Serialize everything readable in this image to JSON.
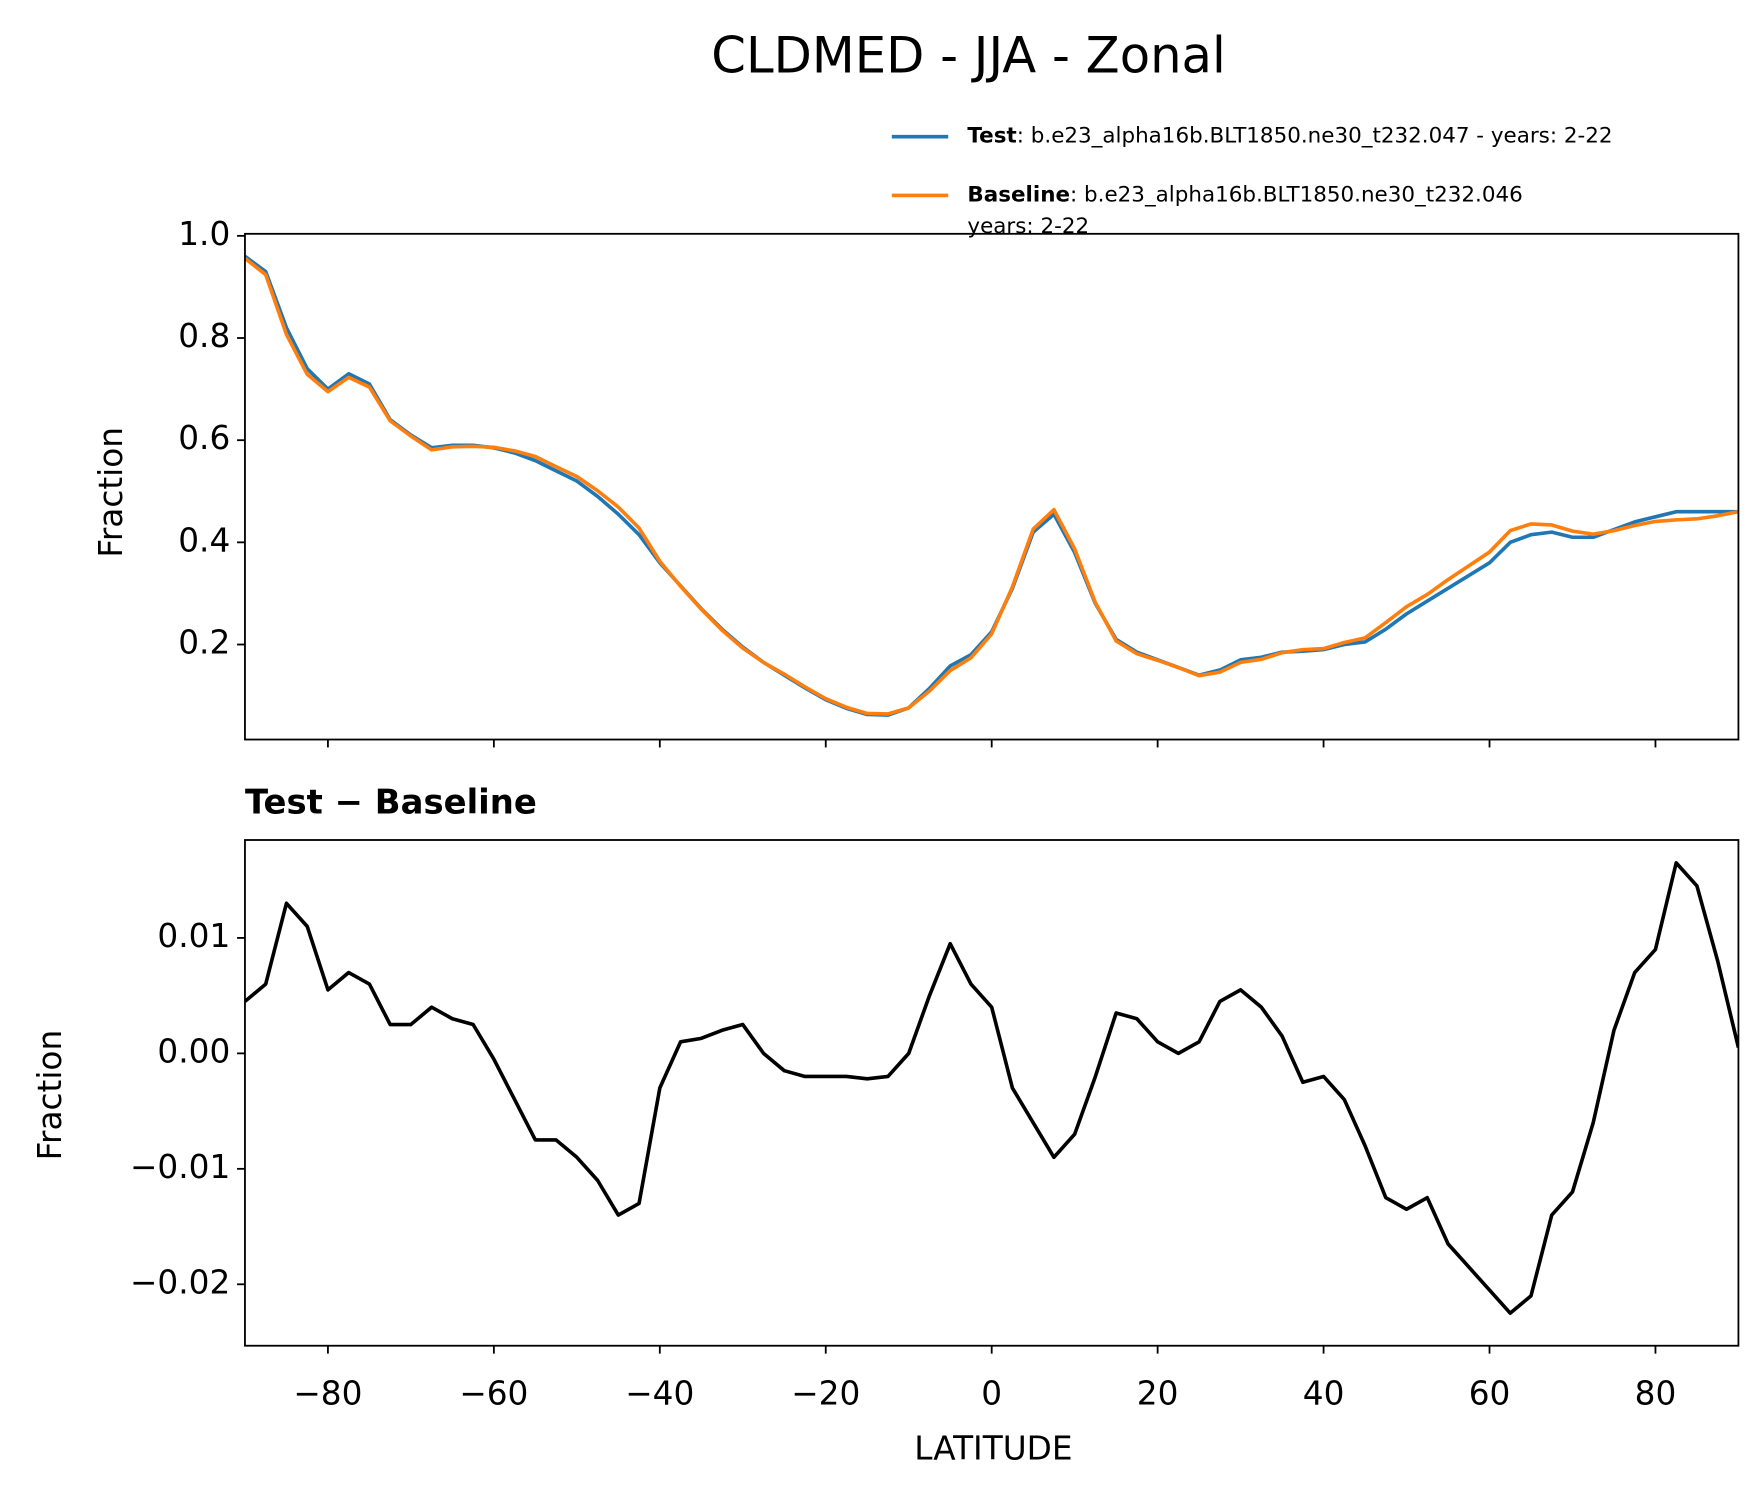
{
  "chart_data": [
    {
      "type": "line",
      "title": "CLDMED - JJA - Zonal",
      "ylabel": "Fraction",
      "x": [
        -90,
        -87.5,
        -85,
        -82.5,
        -80,
        -77.5,
        -75,
        -72.5,
        -70,
        -67.5,
        -65,
        -62.5,
        -60,
        -57.5,
        -55,
        -52.5,
        -50,
        -47.5,
        -45,
        -42.5,
        -40,
        -37.5,
        -35,
        -32.5,
        -30,
        -27.5,
        -25,
        -22.5,
        -20,
        -17.5,
        -15,
        -12.5,
        -10,
        -7.5,
        -5,
        -2.5,
        0,
        2.5,
        5,
        7.5,
        10,
        12.5,
        15,
        17.5,
        20,
        22.5,
        25,
        27.5,
        30,
        32.5,
        35,
        37.5,
        40,
        42.5,
        45,
        47.5,
        50,
        52.5,
        55,
        57.5,
        60,
        62.5,
        65,
        67.5,
        70,
        72.5,
        75,
        77.5,
        80,
        82.5,
        85,
        87.5,
        90
      ],
      "series": [
        {
          "name": "Test",
          "legend_text": [
            ": b.e23_alpha16b.BLT1850.ne30_t232.047 - years: 2-22"
          ],
          "color": "#1f77b4",
          "values": [
            0.96,
            0.93,
            0.82,
            0.74,
            0.7,
            0.73,
            0.71,
            0.64,
            0.61,
            0.585,
            0.59,
            0.59,
            0.585,
            0.575,
            0.56,
            0.54,
            0.52,
            0.49,
            0.455,
            0.415,
            0.36,
            0.315,
            0.27,
            0.23,
            0.195,
            0.165,
            0.14,
            0.115,
            0.092,
            0.075,
            0.063,
            0.062,
            0.076,
            0.114,
            0.158,
            0.18,
            0.225,
            0.31,
            0.42,
            0.455,
            0.38,
            0.28,
            0.21,
            0.185,
            0.17,
            0.155,
            0.14,
            0.15,
            0.17,
            0.175,
            0.185,
            0.187,
            0.19,
            0.2,
            0.205,
            0.23,
            0.26,
            0.285,
            0.31,
            0.335,
            0.36,
            0.4,
            0.415,
            0.42,
            0.41,
            0.41,
            0.425,
            0.44,
            0.45,
            0.46,
            0.46,
            0.46,
            0.46
          ]
        },
        {
          "name": "Baseline",
          "legend_text": [
            ": b.e23_alpha16b.BLT1850.ne30_t232.046",
            "years: 2-22"
          ],
          "color": "#ff7f0e",
          "values": [
            0.956,
            0.924,
            0.807,
            0.729,
            0.695,
            0.723,
            0.704,
            0.638,
            0.608,
            0.581,
            0.587,
            0.588,
            0.586,
            0.579,
            0.568,
            0.548,
            0.529,
            0.501,
            0.469,
            0.428,
            0.363,
            0.314,
            0.269,
            0.228,
            0.193,
            0.165,
            0.142,
            0.117,
            0.094,
            0.077,
            0.065,
            0.064,
            0.076,
            0.109,
            0.149,
            0.174,
            0.221,
            0.313,
            0.426,
            0.464,
            0.387,
            0.282,
            0.207,
            0.182,
            0.169,
            0.155,
            0.139,
            0.146,
            0.165,
            0.171,
            0.184,
            0.19,
            0.192,
            0.204,
            0.213,
            0.243,
            0.274,
            0.298,
            0.327,
            0.354,
            0.381,
            0.423,
            0.436,
            0.434,
            0.422,
            0.416,
            0.423,
            0.433,
            0.441,
            0.444,
            0.446,
            0.452,
            0.46
          ]
        }
      ],
      "xlim": [
        -90,
        90
      ],
      "xticks": [
        -80,
        -60,
        -40,
        -20,
        0,
        20,
        40,
        60,
        80
      ],
      "ylim": [
        0.014,
        1.004
      ],
      "yticks": [
        0.2,
        0.4,
        0.6,
        0.8,
        {
          "value": 1,
          "label": "1.0"
        }
      ]
    },
    {
      "type": "line",
      "title": "Test − Baseline",
      "ylabel": "Fraction",
      "xlabel": "LATITUDE",
      "x": [
        -90,
        -87.5,
        -85,
        -82.5,
        -80,
        -77.5,
        -75,
        -72.5,
        -70,
        -67.5,
        -65,
        -62.5,
        -60,
        -57.5,
        -55,
        -52.5,
        -50,
        -47.5,
        -45,
        -42.5,
        -40,
        -37.5,
        -35,
        -32.5,
        -30,
        -27.5,
        -25,
        -22.5,
        -20,
        -17.5,
        -15,
        -12.5,
        -10,
        -7.5,
        -5,
        -2.5,
        0,
        2.5,
        5,
        7.5,
        10,
        12.5,
        15,
        17.5,
        20,
        22.5,
        25,
        27.5,
        30,
        32.5,
        35,
        37.5,
        40,
        42.5,
        45,
        47.5,
        50,
        52.5,
        55,
        57.5,
        60,
        62.5,
        65,
        67.5,
        70,
        72.5,
        75,
        77.5,
        80,
        82.5,
        85,
        87.5,
        90
      ],
      "series": [
        {
          "color": "#000000",
          "values": [
            0.0045,
            0.006,
            0.013,
            0.011,
            0.0055,
            0.007,
            0.006,
            0.0025,
            0.0025,
            0.004,
            0.003,
            0.0025,
            -0.0005,
            -0.004,
            -0.0075,
            -0.0075,
            -0.009,
            -0.011,
            -0.014,
            -0.013,
            -0.003,
            0.001,
            0.0013,
            0.002,
            0.0025,
            0.0,
            -0.0015,
            -0.002,
            -0.002,
            -0.002,
            -0.0022,
            -0.002,
            0.0,
            0.005,
            0.0095,
            0.006,
            0.004,
            -0.003,
            -0.006,
            -0.009,
            -0.007,
            -0.002,
            0.0035,
            0.003,
            0.001,
            0.0,
            0.001,
            0.0045,
            0.0055,
            0.004,
            0.0015,
            -0.0025,
            -0.002,
            -0.004,
            -0.008,
            -0.0125,
            -0.0135,
            -0.0125,
            -0.0165,
            -0.0185,
            -0.0205,
            -0.0225,
            -0.021,
            -0.014,
            -0.012,
            -0.006,
            0.002,
            0.007,
            0.009,
            0.0165,
            0.0145,
            0.008,
            0.0005
          ]
        }
      ],
      "xlim": [
        -90,
        90
      ],
      "xticks": [
        {
          "value": -80,
          "label": "−80"
        },
        {
          "value": -60,
          "label": "−60"
        },
        {
          "value": -40,
          "label": "−40"
        },
        {
          "value": -20,
          "label": "−20"
        },
        0,
        20,
        40,
        60,
        80
      ],
      "ylim": [
        -0.02532,
        0.01848
      ],
      "yticks": [
        {
          "value": -0.02,
          "label": "−0.02"
        },
        {
          "value": -0.01,
          "label": "−0.01"
        },
        {
          "value": 0,
          "label": "0.00"
        },
        0.01
      ]
    }
  ]
}
